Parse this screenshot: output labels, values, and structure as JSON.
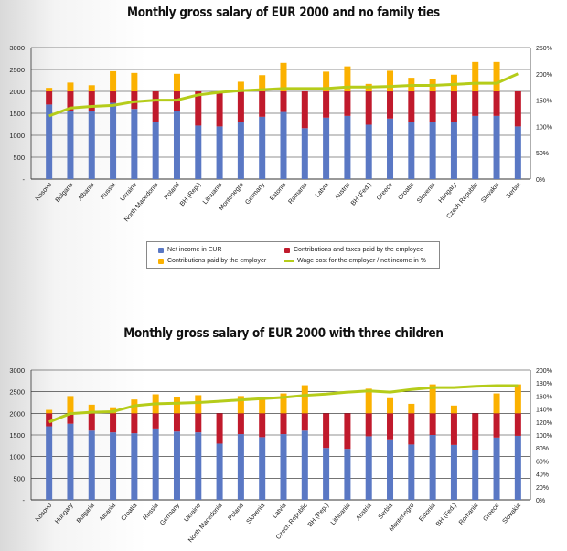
{
  "colors": {
    "net_income": "#5a78c4",
    "employee_contrib": "#c01a2c",
    "employer_contrib": "#fbb100",
    "wage_line": "#b5cc1a"
  },
  "legend": {
    "net_income": "Net income in EUR",
    "employee_contrib": "Contributions and taxes paid by the employee",
    "employer_contrib": "Contributions paid by the employer",
    "wage_line": "Wage cost for the employer / net income in %"
  },
  "chart_data": [
    {
      "type": "bar",
      "stacked": true,
      "title": "Monthly gross salary of EUR 2000 and no family ties",
      "left_axis": {
        "ylim": [
          0,
          3000
        ],
        "ticks": [
          "-",
          "500",
          "1000",
          "1500",
          "2000",
          "2500",
          "3000"
        ]
      },
      "right_axis": {
        "ylim": [
          0,
          250
        ],
        "ticks": [
          "0%",
          "50%",
          "100%",
          "150%",
          "200%",
          "250%"
        ]
      },
      "categories": [
        "Kosovo",
        "Bulgaria",
        "Albania",
        "Russia",
        "Ukraine",
        "North Macedonia",
        "Poland",
        "BH (Rep.)",
        "Lithuania",
        "Montenegro",
        "Germany",
        "Estonia",
        "Romania",
        "Latvia",
        "Austria",
        "BH (Fed.)",
        "Greece",
        "Croatia",
        "Slovenia",
        "Hungary",
        "Czech Republic",
        "Slovakia",
        "Serbia"
      ],
      "series": [
        {
          "name": "Net income in EUR",
          "values": [
            1700,
            1560,
            1560,
            1740,
            1600,
            1300,
            1550,
            1220,
            1200,
            1300,
            1420,
            1530,
            1160,
            1400,
            1440,
            1240,
            1380,
            1300,
            1300,
            1300,
            1440,
            1440,
            1200
          ]
        },
        {
          "name": "Contributions and taxes paid by the employee",
          "values": [
            300,
            440,
            440,
            260,
            400,
            700,
            450,
            780,
            800,
            700,
            580,
            470,
            840,
            600,
            560,
            760,
            620,
            700,
            700,
            700,
            560,
            560,
            800
          ]
        },
        {
          "name": "Contributions paid by the employer",
          "values": [
            80,
            200,
            140,
            460,
            420,
            0,
            400,
            0,
            0,
            220,
            370,
            650,
            0,
            450,
            570,
            170,
            470,
            310,
            290,
            380,
            670,
            670,
            0
          ]
        },
        {
          "name": "Wage cost for the employer / net income in %",
          "axis": "right",
          "values": [
            120,
            135,
            138,
            140,
            147,
            150,
            150,
            160,
            165,
            168,
            170,
            172,
            172,
            172,
            175,
            175,
            176,
            178,
            178,
            180,
            182,
            182,
            200
          ]
        }
      ]
    },
    {
      "type": "bar",
      "stacked": true,
      "title": "Monthly gross salary of EUR 2000 with three children",
      "left_axis": {
        "ylim": [
          0,
          3000
        ],
        "ticks": [
          "-",
          "500",
          "1000",
          "1500",
          "2000",
          "2500",
          "3000"
        ]
      },
      "right_axis": {
        "ylim": [
          0,
          200
        ],
        "ticks": [
          "0%",
          "20%",
          "40%",
          "60%",
          "80%",
          "100%",
          "120%",
          "140%",
          "160%",
          "180%",
          "200%"
        ]
      },
      "categories": [
        "Kosovo",
        "Hungary",
        "Bulgaria",
        "Albania",
        "Croatia",
        "Russia",
        "Germany",
        "Ukraine",
        "North Macedonia",
        "Poland",
        "Slovenia",
        "Latvia",
        "Czech Republic",
        "BH (Rep.)",
        "Lithuania",
        "Austria",
        "Serbia",
        "Montenegro",
        "Estonia",
        "BH (Fed.)",
        "Romania",
        "Greece",
        "Slovakia"
      ],
      "series": [
        {
          "name": "Net income in EUR",
          "values": [
            1700,
            1760,
            1600,
            1560,
            1540,
            1650,
            1580,
            1560,
            1300,
            1520,
            1450,
            1520,
            1600,
            1200,
            1180,
            1470,
            1400,
            1280,
            1500,
            1270,
            1160,
            1440,
            1480
          ]
        },
        {
          "name": "Contributions and taxes paid by the employee",
          "values": [
            300,
            240,
            400,
            440,
            460,
            350,
            420,
            440,
            700,
            480,
            550,
            480,
            400,
            800,
            820,
            530,
            600,
            720,
            500,
            730,
            840,
            560,
            520
          ]
        },
        {
          "name": "Contributions paid by the employer",
          "values": [
            80,
            400,
            200,
            140,
            320,
            440,
            370,
            420,
            0,
            400,
            320,
            460,
            650,
            0,
            0,
            570,
            350,
            220,
            670,
            180,
            0,
            460,
            670
          ]
        },
        {
          "name": "Wage cost for the employer / net income in %",
          "axis": "right",
          "values": [
            120,
            133,
            135,
            136,
            145,
            148,
            149,
            150,
            152,
            154,
            156,
            158,
            161,
            163,
            166,
            168,
            166,
            170,
            173,
            173,
            175,
            176,
            176
          ]
        }
      ]
    }
  ]
}
